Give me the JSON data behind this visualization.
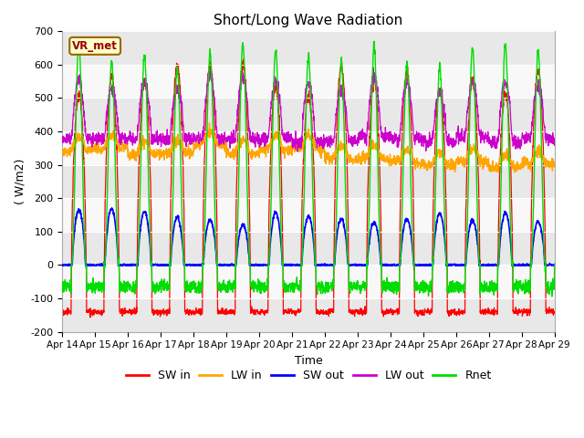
{
  "title": "Short/Long Wave Radiation",
  "xlabel": "Time",
  "ylabel": "( W/m2)",
  "ylim": [
    -200,
    700
  ],
  "tick_labels": [
    "Apr 14",
    "Apr 15",
    "Apr 16",
    "Apr 17",
    "Apr 18",
    "Apr 19",
    "Apr 20",
    "Apr 21",
    "Apr 22",
    "Apr 23",
    "Apr 24",
    "Apr 25",
    "Apr 26",
    "Apr 27",
    "Apr 28",
    "Apr 29"
  ],
  "colors": {
    "SW_in": "#ff0000",
    "LW_in": "#ffa500",
    "SW_out": "#0000ff",
    "LW_out": "#cc00cc",
    "Rnet": "#00dd00"
  },
  "legend_labels": [
    "SW in",
    "LW in",
    "SW out",
    "LW out",
    "Rnet"
  ],
  "station_label": "VR_met",
  "linewidth": 1.0,
  "n_days": 15,
  "pts_per_day": 144
}
